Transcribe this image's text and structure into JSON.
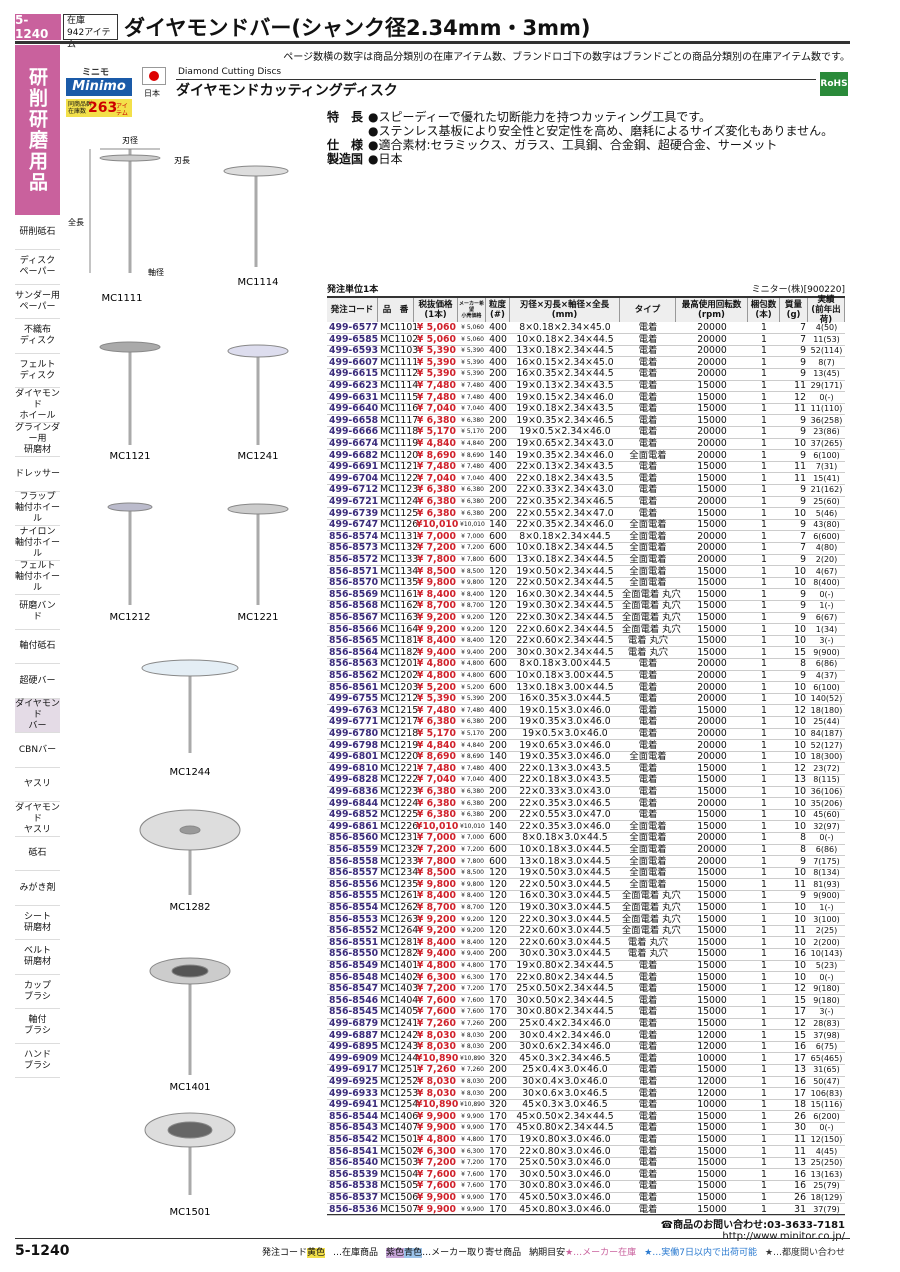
{
  "header": {
    "page_number": "5-1240",
    "stock_label": "在庫",
    "stock_count": "942",
    "stock_unit": "アイテム",
    "title": "ダイヤモンドバー(シャンク径2.34mm・3mm)"
  },
  "note": "ページ数横の数字は商品分類別の在庫アイテム数、ブランドロゴ下の数字はブランドごとの商品分類別の在庫アイテム数です。",
  "sidebar": {
    "section_title": "研削研磨用品",
    "items": [
      "研削砥石",
      "ディスク\nペーパー",
      "サンダー用\nペーパー",
      "不織布\nディスク",
      "フェルト\nディスク",
      "ダイヤモンド\nホイール",
      "グラインダー用\n研磨材",
      "ドレッサー",
      "フラップ\n軸付ホイール",
      "ナイロン\n軸付ホイール",
      "フェルト\n軸付ホイール",
      "研磨バンド",
      "軸付砥石",
      "超硬バー",
      "ダイヤモンド\nバー",
      "CBNバー",
      "ヤスリ",
      "ダイヤモンド\nヤスリ",
      "砥石",
      "みがき剤",
      "シート\n研磨材",
      "ベルト\n研磨材",
      "カップ\nブラシ",
      "軸付\nブラシ",
      "ハンド\nブラシ"
    ]
  },
  "brand": {
    "kana": "ミニモ",
    "logo": "Minimo",
    "stock_label": "同商品群\n在庫数",
    "stock_count": "263",
    "stock_unit": "アイテム",
    "country": "日本",
    "english_name": "Diamond Cutting Discs",
    "product_name": "ダイヤモンドカッティングディスク",
    "rohs": "RoHS"
  },
  "features": [
    [
      "特　長",
      "●スピーディーで優れた切断能力を持つカッティング工具です。"
    ],
    [
      "",
      "●ステンレス基板により安全性と安定性を高め、磨耗によるサイズ変化もありません。"
    ],
    [
      "仕　様",
      "●適合素材:セラミックス、ガラス、工具鋼、合金鋼、超硬合金、サーメット"
    ],
    [
      "製造国",
      "●日本"
    ]
  ],
  "figure": {
    "dimensions": [
      "刃径",
      "刃長",
      "全長",
      "軸径"
    ],
    "labels": [
      "MC1111",
      "MC1114",
      "MC1121",
      "MC1241",
      "MC1212",
      "MC1221",
      "MC1244",
      "MC1282",
      "MC1401",
      "MC1501"
    ]
  },
  "table": {
    "order_unit": "発注単位1本",
    "supplier": "ミニター(株)[900220]",
    "columns": [
      "発注コード",
      "品　番",
      "税抜価格\n(1本)",
      "メーカー希望\n小売価格",
      "粒度\n(#)",
      "刃径×刃長×軸径×全長\n(mm)",
      "タイプ",
      "最高使用回転数\n(rpm)",
      "梱包数\n(本)",
      "質量\n(g)",
      "実績\n(前年出荷)"
    ],
    "rows": [
      [
        "499-6577",
        "MC1101",
        "¥ 5,060",
        "¥ 5,060",
        "400",
        "8×0.18×2.34×45.0",
        "電着",
        "20000",
        "1",
        "7",
        "4(50)"
      ],
      [
        "499-6585",
        "MC1102",
        "¥ 5,060",
        "¥ 5,060",
        "400",
        "10×0.18×2.34×44.5",
        "電着",
        "20000",
        "1",
        "7",
        "11(53)"
      ],
      [
        "499-6593",
        "MC1103",
        "¥ 5,390",
        "¥ 5,390",
        "400",
        "13×0.18×2.34×44.5",
        "電着",
        "20000",
        "1",
        "9",
        "52(114)"
      ],
      [
        "499-6607",
        "MC1111",
        "¥ 5,390",
        "¥ 5,390",
        "400",
        "16×0.15×2.34×45.0",
        "電着",
        "20000",
        "1",
        "9",
        "8(7)"
      ],
      [
        "499-6615",
        "MC1112",
        "¥ 5,390",
        "¥ 5,390",
        "200",
        "16×0.35×2.34×44.5",
        "電着",
        "20000",
        "1",
        "9",
        "13(45)"
      ],
      [
        "499-6623",
        "MC1114",
        "¥ 7,480",
        "¥ 7,480",
        "400",
        "19×0.13×2.34×43.5",
        "電着",
        "15000",
        "1",
        "11",
        "29(171)"
      ],
      [
        "499-6631",
        "MC1115",
        "¥ 7,480",
        "¥ 7,480",
        "400",
        "19×0.15×2.34×46.0",
        "電着",
        "15000",
        "1",
        "12",
        "0(-)"
      ],
      [
        "499-6640",
        "MC1116",
        "¥ 7,040",
        "¥ 7,040",
        "400",
        "19×0.18×2.34×43.5",
        "電着",
        "15000",
        "1",
        "11",
        "11(110)"
      ],
      [
        "499-6658",
        "MC1117",
        "¥ 6,380",
        "¥ 6,380",
        "200",
        "19×0.35×2.34×46.5",
        "電着",
        "15000",
        "1",
        "9",
        "36(258)"
      ],
      [
        "499-6666",
        "MC1118",
        "¥ 5,170",
        "¥ 5,170",
        "200",
        "19×0.5×2.34×46.0",
        "電着",
        "20000",
        "1",
        "9",
        "23(86)"
      ],
      [
        "499-6674",
        "MC1119",
        "¥ 4,840",
        "¥ 4,840",
        "200",
        "19×0.65×2.34×43.0",
        "電着",
        "20000",
        "1",
        "10",
        "37(265)"
      ],
      [
        "499-6682",
        "MC1120",
        "¥ 8,690",
        "¥ 8,690",
        "140",
        "19×0.35×2.34×46.0",
        "全面電着",
        "20000",
        "1",
        "9",
        "6(100)"
      ],
      [
        "499-6691",
        "MC1121",
        "¥ 7,480",
        "¥ 7,480",
        "400",
        "22×0.13×2.34×43.5",
        "電着",
        "15000",
        "1",
        "11",
        "7(31)"
      ],
      [
        "499-6704",
        "MC1122",
        "¥ 7,040",
        "¥ 7,040",
        "400",
        "22×0.18×2.34×43.5",
        "電着",
        "15000",
        "1",
        "11",
        "15(41)"
      ],
      [
        "499-6712",
        "MC1123",
        "¥ 6,380",
        "¥ 6,380",
        "200",
        "22×0.33×2.34×43.0",
        "電着",
        "15000",
        "1",
        "9",
        "21(162)"
      ],
      [
        "499-6721",
        "MC1124",
        "¥ 6,380",
        "¥ 6,380",
        "200",
        "22×0.35×2.34×46.5",
        "電着",
        "20000",
        "1",
        "9",
        "25(60)"
      ],
      [
        "499-6739",
        "MC1125",
        "¥ 6,380",
        "¥ 6,380",
        "200",
        "22×0.55×2.34×47.0",
        "電着",
        "15000",
        "1",
        "10",
        "5(46)"
      ],
      [
        "499-6747",
        "MC1126",
        "¥10,010",
        "¥10,010",
        "140",
        "22×0.35×2.34×46.0",
        "全面電着",
        "15000",
        "1",
        "9",
        "43(80)"
      ],
      [
        "856-8574",
        "MC1131",
        "¥ 7,000",
        "¥ 7,000",
        "600",
        "8×0.18×2.34×44.5",
        "全面電着",
        "20000",
        "1",
        "7",
        "6(600)"
      ],
      [
        "856-8573",
        "MC1132",
        "¥ 7,200",
        "¥ 7,200",
        "600",
        "10×0.18×2.34×44.5",
        "全面電着",
        "20000",
        "1",
        "7",
        "4(80)"
      ],
      [
        "856-8572",
        "MC1133",
        "¥ 7,800",
        "¥ 7,800",
        "600",
        "13×0.18×2.34×44.5",
        "全面電着",
        "20000",
        "1",
        "9",
        "2(20)"
      ],
      [
        "856-8571",
        "MC1134",
        "¥ 8,500",
        "¥ 8,500",
        "120",
        "19×0.50×2.34×44.5",
        "全面電着",
        "15000",
        "1",
        "10",
        "4(67)"
      ],
      [
        "856-8570",
        "MC1135",
        "¥ 9,800",
        "¥ 9,800",
        "120",
        "22×0.50×2.34×44.5",
        "全面電着",
        "15000",
        "1",
        "10",
        "8(400)"
      ],
      [
        "856-8569",
        "MC1161",
        "¥ 8,400",
        "¥ 8,400",
        "120",
        "16×0.30×2.34×44.5",
        "全面電着 丸穴",
        "15000",
        "1",
        "9",
        "0(-)"
      ],
      [
        "856-8568",
        "MC1162",
        "¥ 8,700",
        "¥ 8,700",
        "120",
        "19×0.30×2.34×44.5",
        "全面電着 丸穴",
        "15000",
        "1",
        "9",
        "1(-)"
      ],
      [
        "856-8567",
        "MC1163",
        "¥ 9,200",
        "¥ 9,200",
        "120",
        "22×0.30×2.34×44.5",
        "全面電着 丸穴",
        "15000",
        "1",
        "9",
        "6(67)"
      ],
      [
        "856-8566",
        "MC1164",
        "¥ 9,200",
        "¥ 9,200",
        "120",
        "22×0.60×2.34×44.5",
        "全面電着 丸穴",
        "15000",
        "1",
        "10",
        "1(34)"
      ],
      [
        "856-8565",
        "MC1181",
        "¥ 8,400",
        "¥ 8,400",
        "120",
        "22×0.60×2.34×44.5",
        "電着 丸穴",
        "15000",
        "1",
        "10",
        "3(-)"
      ],
      [
        "856-8564",
        "MC1182",
        "¥ 9,400",
        "¥ 9,400",
        "200",
        "30×0.30×2.34×44.5",
        "電着 丸穴",
        "15000",
        "1",
        "15",
        "9(900)"
      ],
      [
        "856-8563",
        "MC1201",
        "¥ 4,800",
        "¥ 4,800",
        "600",
        "8×0.18×3.00×44.5",
        "電着",
        "20000",
        "1",
        "8",
        "6(86)"
      ],
      [
        "856-8562",
        "MC1202",
        "¥ 4,800",
        "¥ 4,800",
        "600",
        "10×0.18×3.00×44.5",
        "電着",
        "20000",
        "1",
        "9",
        "4(37)"
      ],
      [
        "856-8561",
        "MC1203",
        "¥ 5,200",
        "¥ 5,200",
        "600",
        "13×0.18×3.00×44.5",
        "電着",
        "20000",
        "1",
        "10",
        "6(100)"
      ],
      [
        "499-6755",
        "MC1212",
        "¥ 5,390",
        "¥ 5,390",
        "200",
        "16×0.35×3.0×44.5",
        "電着",
        "20000",
        "1",
        "10",
        "140(52)"
      ],
      [
        "499-6763",
        "MC1215",
        "¥ 7,480",
        "¥ 7,480",
        "400",
        "19×0.15×3.0×46.0",
        "電着",
        "15000",
        "1",
        "12",
        "18(180)"
      ],
      [
        "499-6771",
        "MC1217",
        "¥ 6,380",
        "¥ 6,380",
        "200",
        "19×0.35×3.0×46.0",
        "電着",
        "20000",
        "1",
        "10",
        "25(44)"
      ],
      [
        "499-6780",
        "MC1218",
        "¥ 5,170",
        "¥ 5,170",
        "200",
        "19×0.5×3.0×46.0",
        "電着",
        "20000",
        "1",
        "10",
        "84(187)"
      ],
      [
        "499-6798",
        "MC1219",
        "¥ 4,840",
        "¥ 4,840",
        "200",
        "19×0.65×3.0×46.0",
        "電着",
        "20000",
        "1",
        "10",
        "52(127)"
      ],
      [
        "499-6801",
        "MC1220",
        "¥ 8,690",
        "¥ 8,690",
        "140",
        "19×0.35×3.0×46.0",
        "全面電着",
        "20000",
        "1",
        "10",
        "18(300)"
      ],
      [
        "499-6810",
        "MC1221",
        "¥ 7,480",
        "¥ 7,480",
        "400",
        "22×0.13×3.0×43.5",
        "電着",
        "15000",
        "1",
        "12",
        "23(72)"
      ],
      [
        "499-6828",
        "MC1222",
        "¥ 7,040",
        "¥ 7,040",
        "400",
        "22×0.18×3.0×43.5",
        "電着",
        "15000",
        "1",
        "13",
        "8(115)"
      ],
      [
        "499-6836",
        "MC1223",
        "¥ 6,380",
        "¥ 6,380",
        "200",
        "22×0.33×3.0×43.0",
        "電着",
        "15000",
        "1",
        "10",
        "36(106)"
      ],
      [
        "499-6844",
        "MC1224",
        "¥ 6,380",
        "¥ 6,380",
        "200",
        "22×0.35×3.0×46.5",
        "電着",
        "20000",
        "1",
        "10",
        "35(206)"
      ],
      [
        "499-6852",
        "MC1225",
        "¥ 6,380",
        "¥ 6,380",
        "200",
        "22×0.55×3.0×47.0",
        "電着",
        "15000",
        "1",
        "10",
        "45(60)"
      ],
      [
        "499-6861",
        "MC1226",
        "¥10,010",
        "¥10,010",
        "140",
        "22×0.35×3.0×46.0",
        "全面電着",
        "15000",
        "1",
        "10",
        "32(97)"
      ],
      [
        "856-8560",
        "MC1231",
        "¥ 7,000",
        "¥ 7,000",
        "600",
        "8×0.18×3.0×44.5",
        "全面電着",
        "20000",
        "1",
        "8",
        "0(-)"
      ],
      [
        "856-8559",
        "MC1232",
        "¥ 7,200",
        "¥ 7,200",
        "600",
        "10×0.18×3.0×44.5",
        "全面電着",
        "20000",
        "1",
        "8",
        "6(86)"
      ],
      [
        "856-8558",
        "MC1233",
        "¥ 7,800",
        "¥ 7,800",
        "600",
        "13×0.18×3.0×44.5",
        "全面電着",
        "20000",
        "1",
        "9",
        "7(175)"
      ],
      [
        "856-8557",
        "MC1234",
        "¥ 8,500",
        "¥ 8,500",
        "120",
        "19×0.50×3.0×44.5",
        "全面電着",
        "15000",
        "1",
        "10",
        "8(134)"
      ],
      [
        "856-8556",
        "MC1235",
        "¥ 9,800",
        "¥ 9,800",
        "120",
        "22×0.50×3.0×44.5",
        "全面電着",
        "15000",
        "1",
        "11",
        "81(93)"
      ],
      [
        "856-8555",
        "MC1261",
        "¥ 8,400",
        "¥ 8,400",
        "120",
        "16×0.30×3.0×44.5",
        "全面電着 丸穴",
        "15000",
        "1",
        "9",
        "9(900)"
      ],
      [
        "856-8554",
        "MC1262",
        "¥ 8,700",
        "¥ 8,700",
        "120",
        "19×0.30×3.0×44.5",
        "全面電着 丸穴",
        "15000",
        "1",
        "10",
        "1(-)"
      ],
      [
        "856-8553",
        "MC1263",
        "¥ 9,200",
        "¥ 9,200",
        "120",
        "22×0.30×3.0×44.5",
        "全面電着 丸穴",
        "15000",
        "1",
        "10",
        "3(100)"
      ],
      [
        "856-8552",
        "MC1264",
        "¥ 9,200",
        "¥ 9,200",
        "120",
        "22×0.60×3.0×44.5",
        "全面電着 丸穴",
        "15000",
        "1",
        "11",
        "2(25)"
      ],
      [
        "856-8551",
        "MC1281",
        "¥ 8,400",
        "¥ 8,400",
        "120",
        "22×0.60×3.0×44.5",
        "電着 丸穴",
        "15000",
        "1",
        "10",
        "2(200)"
      ],
      [
        "856-8550",
        "MC1282",
        "¥ 9,400",
        "¥ 9,400",
        "200",
        "30×0.30×3.0×44.5",
        "電着 丸穴",
        "15000",
        "1",
        "16",
        "10(143)"
      ],
      [
        "856-8549",
        "MC1401",
        "¥ 4,800",
        "¥ 4,800",
        "170",
        "19×0.80×2.34×44.5",
        "電着",
        "15000",
        "1",
        "10",
        "5(23)"
      ],
      [
        "856-8548",
        "MC1402",
        "¥ 6,300",
        "¥ 6,300",
        "170",
        "22×0.80×2.34×44.5",
        "電着",
        "15000",
        "1",
        "10",
        "0(-)"
      ],
      [
        "856-8547",
        "MC1403",
        "¥ 7,200",
        "¥ 7,200",
        "170",
        "25×0.50×2.34×44.5",
        "電着",
        "15000",
        "1",
        "12",
        "9(180)"
      ],
      [
        "856-8546",
        "MC1404",
        "¥ 7,600",
        "¥ 7,600",
        "170",
        "30×0.50×2.34×44.5",
        "電着",
        "15000",
        "1",
        "15",
        "9(180)"
      ],
      [
        "856-8545",
        "MC1405",
        "¥ 7,600",
        "¥ 7,600",
        "170",
        "30×0.80×2.34×44.5",
        "電着",
        "15000",
        "1",
        "17",
        "3(-)"
      ],
      [
        "499-6879",
        "MC1241",
        "¥ 7,260",
        "¥ 7,260",
        "200",
        "25×0.4×2.34×46.0",
        "電着",
        "15000",
        "1",
        "12",
        "28(83)"
      ],
      [
        "499-6887",
        "MC1242",
        "¥ 8,030",
        "¥ 8,030",
        "200",
        "30×0.4×2.34×46.0",
        "電着",
        "12000",
        "1",
        "15",
        "37(98)"
      ],
      [
        "499-6895",
        "MC1243",
        "¥ 8,030",
        "¥ 8,030",
        "200",
        "30×0.6×2.34×46.0",
        "電着",
        "12000",
        "1",
        "16",
        "6(75)"
      ],
      [
        "499-6909",
        "MC1244",
        "¥10,890",
        "¥10,890",
        "320",
        "45×0.3×2.34×46.5",
        "電着",
        "10000",
        "1",
        "17",
        "65(465)"
      ],
      [
        "499-6917",
        "MC1251",
        "¥ 7,260",
        "¥ 7,260",
        "200",
        "25×0.4×3.0×46.0",
        "電着",
        "15000",
        "1",
        "13",
        "31(65)"
      ],
      [
        "499-6925",
        "MC1252",
        "¥ 8,030",
        "¥ 8,030",
        "200",
        "30×0.4×3.0×46.0",
        "電着",
        "12000",
        "1",
        "16",
        "50(47)"
      ],
      [
        "499-6933",
        "MC1253",
        "¥ 8,030",
        "¥ 8,030",
        "200",
        "30×0.6×3.0×46.5",
        "電着",
        "12000",
        "1",
        "17",
        "106(83)"
      ],
      [
        "499-6941",
        "MC1254",
        "¥10,890",
        "¥10,890",
        "320",
        "45×0.3×3.0×46.5",
        "電着",
        "10000",
        "1",
        "18",
        "15(116)"
      ],
      [
        "856-8544",
        "MC1406",
        "¥ 9,900",
        "¥ 9,900",
        "170",
        "45×0.50×2.34×44.5",
        "電着",
        "15000",
        "1",
        "26",
        "6(200)"
      ],
      [
        "856-8543",
        "MC1407",
        "¥ 9,900",
        "¥ 9,900",
        "170",
        "45×0.80×2.34×44.5",
        "電着",
        "15000",
        "1",
        "30",
        "0(-)"
      ],
      [
        "856-8542",
        "MC1501",
        "¥ 4,800",
        "¥ 4,800",
        "170",
        "19×0.80×3.0×46.0",
        "電着",
        "15000",
        "1",
        "11",
        "12(150)"
      ],
      [
        "856-8541",
        "MC1502",
        "¥ 6,300",
        "¥ 6,300",
        "170",
        "22×0.80×3.0×46.0",
        "電着",
        "15000",
        "1",
        "11",
        "4(45)"
      ],
      [
        "856-8540",
        "MC1503",
        "¥ 7,200",
        "¥ 7,200",
        "170",
        "25×0.50×3.0×46.0",
        "電着",
        "15000",
        "1",
        "13",
        "25(250)"
      ],
      [
        "856-8539",
        "MC1504",
        "¥ 7,600",
        "¥ 7,600",
        "170",
        "30×0.50×3.0×46.0",
        "電着",
        "15000",
        "1",
        "16",
        "13(163)"
      ],
      [
        "856-8538",
        "MC1505",
        "¥ 7,600",
        "¥ 7,600",
        "170",
        "30×0.80×3.0×46.0",
        "電着",
        "15000",
        "1",
        "16",
        "25(79)"
      ],
      [
        "856-8537",
        "MC1506",
        "¥ 9,900",
        "¥ 9,900",
        "170",
        "45×0.50×3.0×46.0",
        "電着",
        "15000",
        "1",
        "26",
        "18(129)"
      ],
      [
        "856-8536",
        "MC1507",
        "¥ 9,900",
        "¥ 9,900",
        "170",
        "45×0.80×3.0×46.0",
        "電着",
        "15000",
        "1",
        "31",
        "37(79)"
      ]
    ]
  },
  "contact": {
    "phone": "☎商品のお問い合わせ:03-3633-7181",
    "url": "http://www.minitor.co.jp/"
  },
  "footer": {
    "page_number": "5-1240",
    "legend": [
      "発注コード",
      "黄色",
      "…在庫商品",
      "紫色",
      "青色",
      "…メーカー取り寄せ商品",
      "納期目安",
      "★…メーカー在庫",
      "★…実働7日以内で出荷可能",
      "★…都度問い合わせ"
    ]
  }
}
